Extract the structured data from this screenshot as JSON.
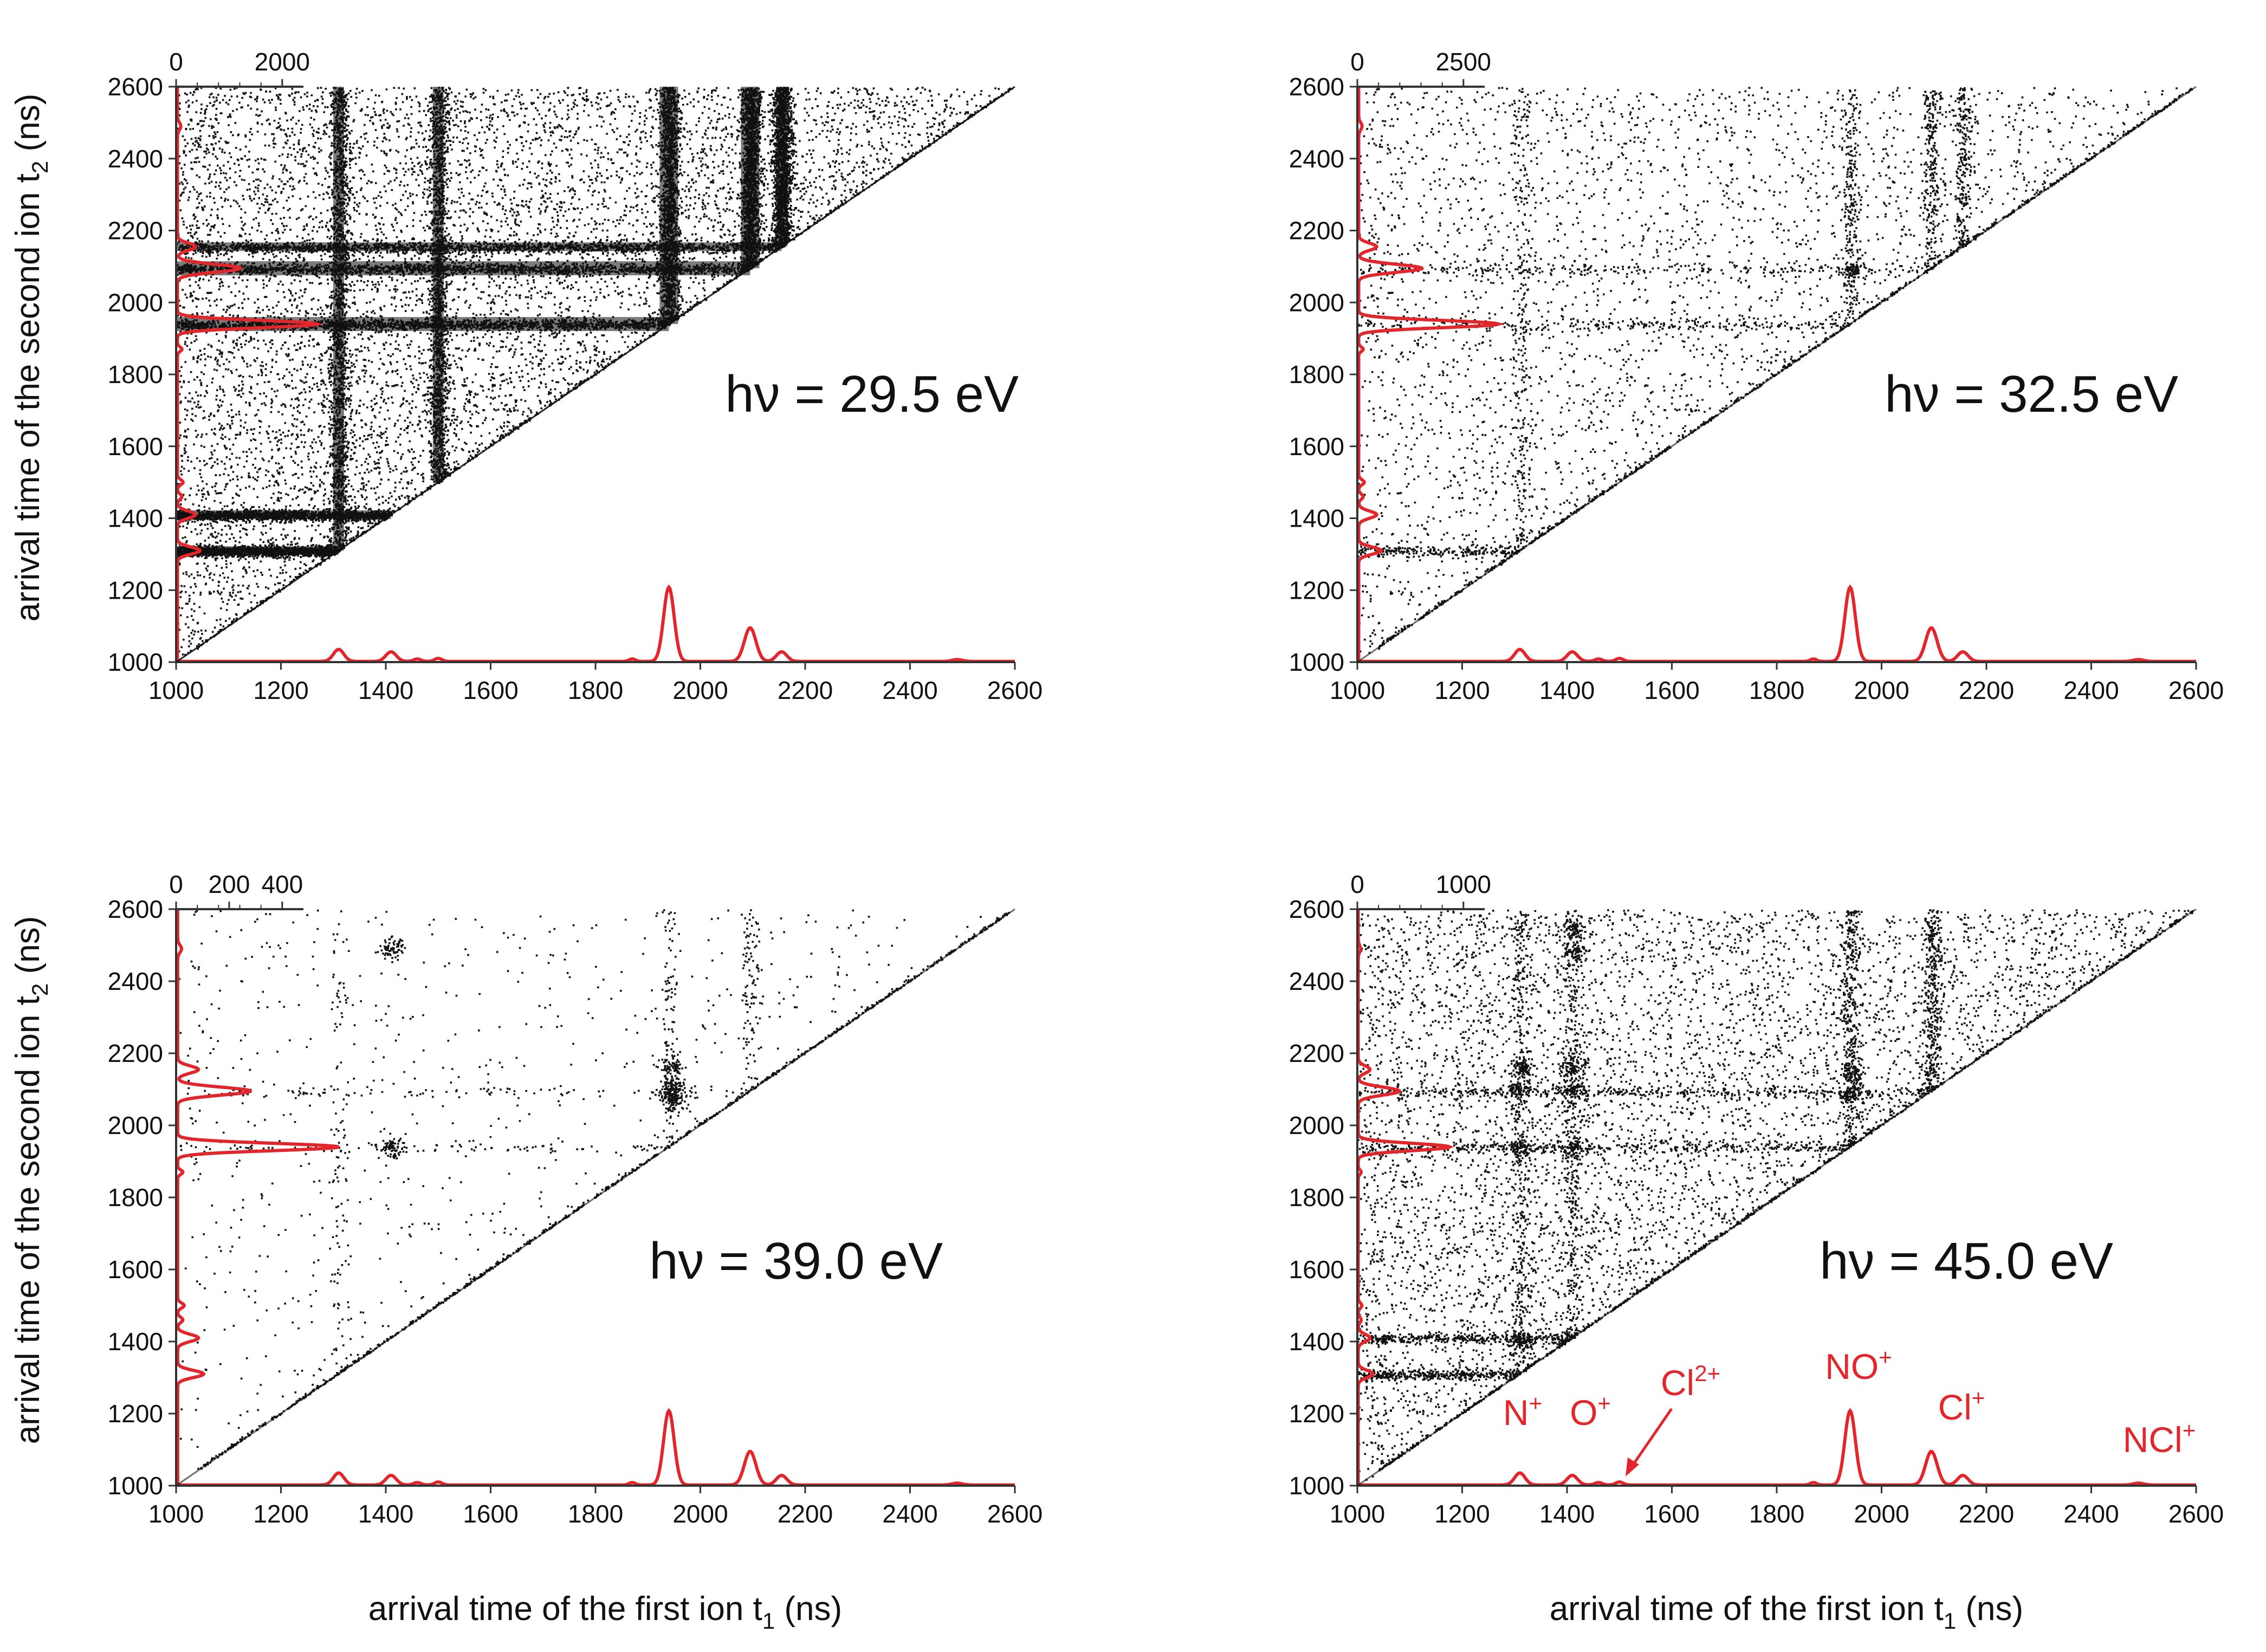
{
  "chart_data": {
    "type": "scatter",
    "xlabel": "arrival time of the first ion t",
    "xlabel_sub": "1",
    "xlabel_unit": " (ns)",
    "ylabel": "arrival time of the second ion t",
    "ylabel_sub": "2",
    "ylabel_unit": " (ns)",
    "xlim": [
      1000,
      2600
    ],
    "ylim": [
      1000,
      2600
    ],
    "x_ticks": [
      1000,
      1200,
      1400,
      1600,
      1800,
      2000,
      2200,
      2400,
      2600
    ],
    "y_ticks": [
      1000,
      1200,
      1400,
      1600,
      1800,
      2000,
      2200,
      2400,
      2600
    ],
    "spectrum_peaks": [
      {
        "t": 1310,
        "h": 0.1,
        "w": 10
      },
      {
        "t": 1410,
        "h": 0.08,
        "w": 10
      },
      {
        "t": 1460,
        "h": 0.02,
        "w": 7
      },
      {
        "t": 1500,
        "h": 0.025,
        "w": 7
      },
      {
        "t": 1870,
        "h": 0.02,
        "w": 6
      },
      {
        "t": 1940,
        "h": 0.62,
        "w": 10
      },
      {
        "t": 2095,
        "h": 0.28,
        "w": 11
      },
      {
        "t": 2155,
        "h": 0.08,
        "w": 10
      },
      {
        "t": 2490,
        "h": 0.015,
        "w": 10
      }
    ],
    "panels": [
      {
        "photon_energy": "hν = 29.5 eV",
        "top_axis_ticks": [
          "0",
          "2000"
        ],
        "density": "very high",
        "coincidence_lines_t1": [
          1310,
          1500,
          1940,
          2095,
          2155
        ],
        "coincidence_lines_t2": [
          1310,
          1410,
          1940,
          2095,
          2155
        ],
        "islands": []
      },
      {
        "photon_energy": "hν = 32.5 eV",
        "top_axis_ticks": [
          "0",
          "2500"
        ],
        "density": "medium",
        "coincidence_lines_t1": [
          1310,
          1940,
          2095,
          2155
        ],
        "coincidence_lines_t2": [
          1310,
          1940,
          2095
        ],
        "islands": [
          [
            1940,
            2090
          ]
        ]
      },
      {
        "photon_energy": "hν = 39.0 eV",
        "top_axis_ticks": [
          "0",
          "200",
          "400"
        ],
        "density": "low",
        "coincidence_lines_t1": [
          1310,
          1940,
          2095
        ],
        "coincidence_lines_t2": [
          1940,
          2095
        ],
        "islands": [
          [
            1410,
            2490
          ],
          [
            1410,
            1940
          ],
          [
            1945,
            2160
          ],
          [
            1945,
            2110
          ],
          [
            1950,
            2070
          ],
          [
            1945,
            2090
          ]
        ]
      },
      {
        "photon_energy": "hν = 45.0 eV",
        "top_axis_ticks": [
          "0",
          "1000"
        ],
        "density": "medium-high",
        "coincidence_lines_t1": [
          1310,
          1410,
          1940,
          2095
        ],
        "coincidence_lines_t2": [
          1310,
          1410,
          1940,
          2095
        ],
        "islands": [
          [
            1410,
            2550
          ],
          [
            1410,
            2490
          ],
          [
            1310,
            2160
          ],
          [
            1310,
            2100
          ],
          [
            1410,
            2160
          ],
          [
            1410,
            2100
          ],
          [
            1940,
            2150
          ],
          [
            1940,
            2090
          ],
          [
            1310,
            1940
          ],
          [
            1410,
            1940
          ],
          [
            1310,
            1400
          ],
          [
            1410,
            1400
          ]
        ]
      }
    ],
    "ion_labels": [
      {
        "base": "N",
        "sup": "+"
      },
      {
        "base": "O",
        "sup": "+"
      },
      {
        "base": "Cl",
        "sup": "2+"
      },
      {
        "base": "NO",
        "sup": "+"
      },
      {
        "base": "Cl",
        "sup": "+"
      },
      {
        "base": "NCl",
        "sup": "+"
      }
    ],
    "colors": {
      "points": "#111111",
      "spectrum": "#e3262b",
      "axis": "#333333"
    }
  }
}
